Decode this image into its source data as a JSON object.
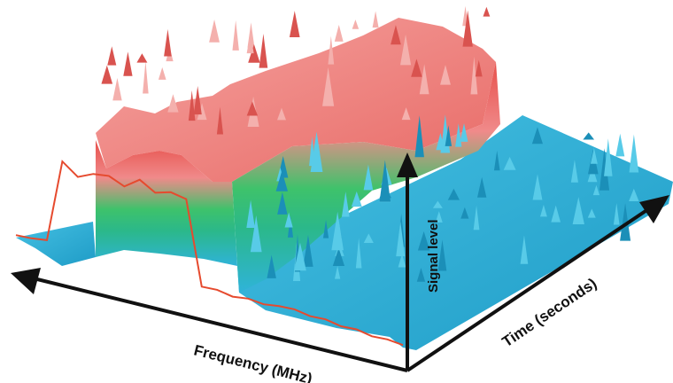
{
  "chart_data": {
    "type": "area",
    "subtype": "3d-waterfall-spectrogram",
    "title": "",
    "xlabel": "Frequency (MHz)",
    "ylabel": "Time (seconds)",
    "zlabel": "Signal level",
    "grid": false,
    "legend": "none",
    "front_trace": {
      "description_levels": "relative signal level 0-1 along frequency (left=high index), read from front edge",
      "x": [
        0,
        4,
        8,
        12,
        16,
        20,
        24,
        28,
        32,
        36,
        40,
        44,
        48,
        52,
        56,
        60,
        64,
        68,
        72,
        76,
        80,
        84,
        88,
        92,
        96,
        100
      ],
      "values": [
        0.02,
        0.03,
        0.02,
        0.04,
        0.03,
        0.05,
        0.04,
        0.06,
        0.05,
        0.03,
        0.04,
        0.02,
        0.04,
        0.03,
        0.7,
        0.72,
        0.68,
        0.75,
        0.66,
        0.71,
        0.69,
        0.63,
        0.72,
        0.05,
        0.03,
        0.02
      ]
    },
    "colors": {
      "low": "#2fb3d9",
      "mid_low": "#2bb88a",
      "mid_high": "#3ec26b",
      "high": "#f08a8a",
      "peak": "#e7504b",
      "trace": "#e64a2e",
      "axis": "#111111"
    }
  }
}
